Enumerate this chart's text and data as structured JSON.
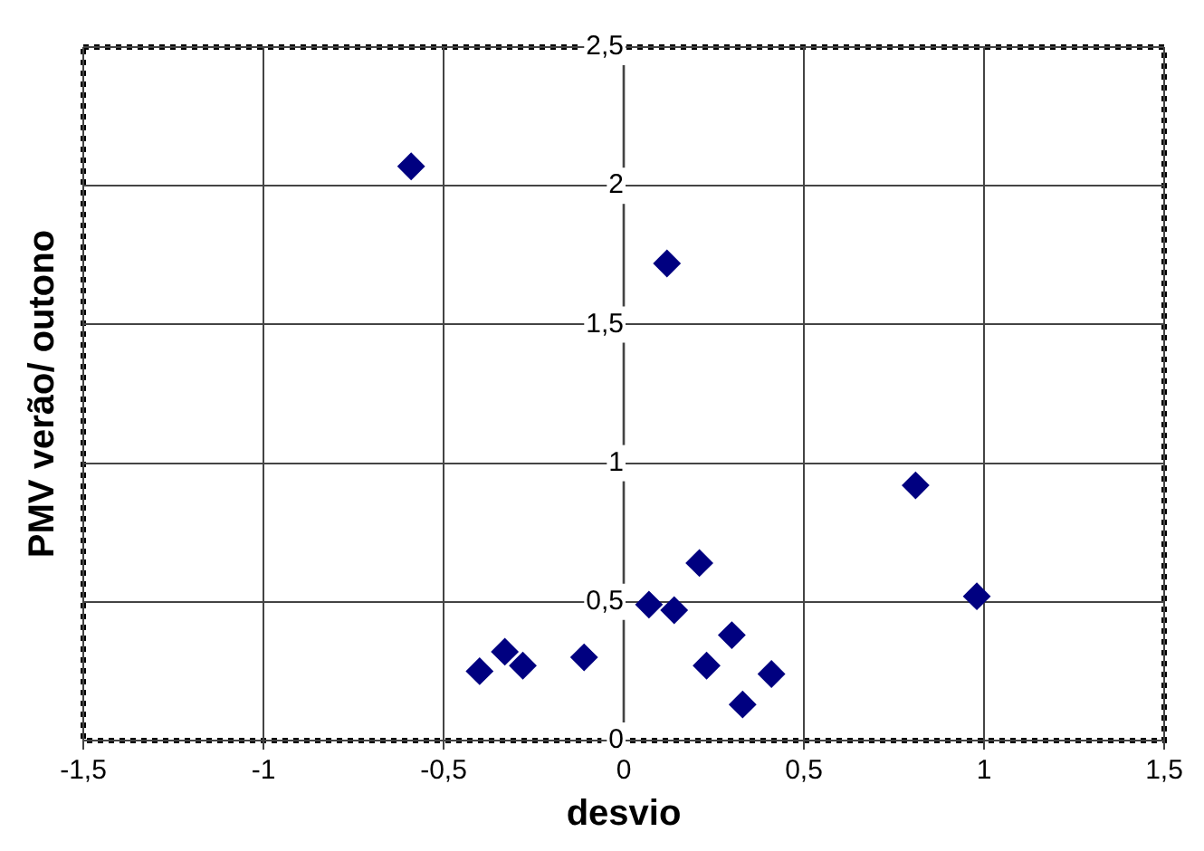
{
  "chart_data": {
    "type": "scatter",
    "xlabel": "desvio",
    "ylabel": "PMV verão/ outono",
    "series": [
      {
        "color": "#000080",
        "x": [
          -0.59,
          0.12,
          0.81,
          0.98,
          0.21,
          0.07,
          0.14,
          0.3,
          0.23,
          0.41,
          0.33,
          -0.4,
          -0.33,
          -0.28,
          -0.11
        ],
        "values": [
          2.07,
          1.72,
          0.92,
          0.52,
          0.64,
          0.49,
          0.47,
          0.38,
          0.27,
          0.24,
          0.13,
          0.25,
          0.32,
          0.27,
          0.3
        ]
      }
    ],
    "xlim": [
      -1.5,
      1.5
    ],
    "xticks": [
      {
        "value": -1.5,
        "label": "-1,5"
      },
      -1,
      {
        "value": -0.5,
        "label": "-0,5"
      },
      0,
      {
        "value": 0.5,
        "label": "0,5"
      },
      1,
      {
        "value": 1.5,
        "label": "1,5"
      }
    ],
    "ylim": [
      0,
      2.5
    ],
    "yticks": [
      0,
      {
        "value": 0.5,
        "label": "0,5"
      },
      1,
      {
        "value": 1.5,
        "label": "1,5"
      },
      2,
      {
        "value": 2.5,
        "label": "2,5"
      }
    ],
    "grid": true,
    "legend": false,
    "marker": "diamond"
  }
}
